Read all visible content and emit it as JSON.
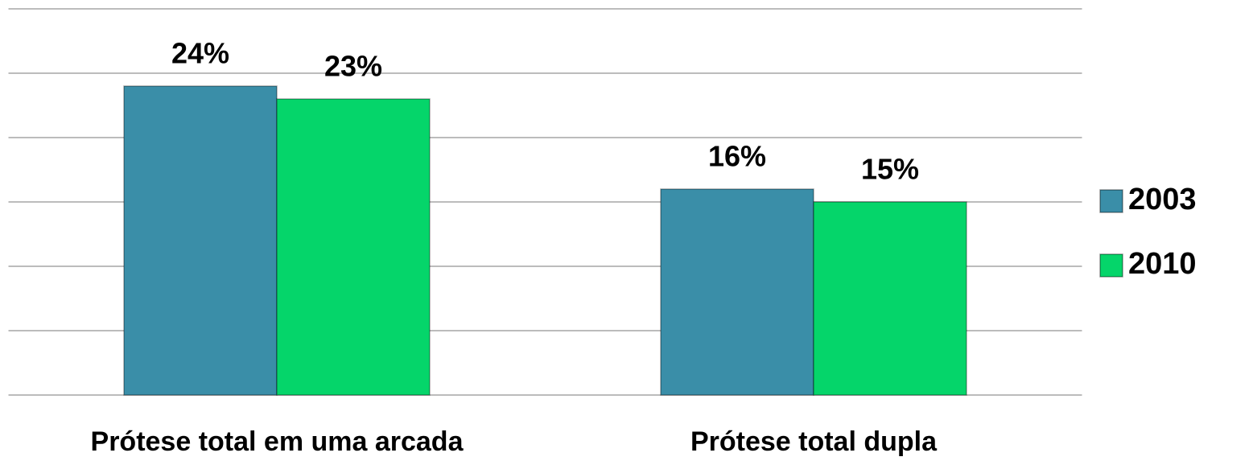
{
  "chart_data": {
    "type": "bar",
    "categories": [
      "Prótese total em uma arcada",
      "Prótese total dupla"
    ],
    "series": [
      {
        "name": "2003",
        "color": "#3a8ea8",
        "values": [
          24,
          16
        ],
        "value_labels": [
          "24%",
          "16%"
        ]
      },
      {
        "name": "2010",
        "color": "#05d56a",
        "values": [
          23,
          15
        ],
        "value_labels": [
          "23%",
          "15%"
        ]
      }
    ],
    "ylim": [
      0,
      30
    ],
    "yticks": [
      0,
      5,
      10,
      15,
      20,
      25,
      30
    ],
    "grid": true,
    "legend": "right"
  }
}
